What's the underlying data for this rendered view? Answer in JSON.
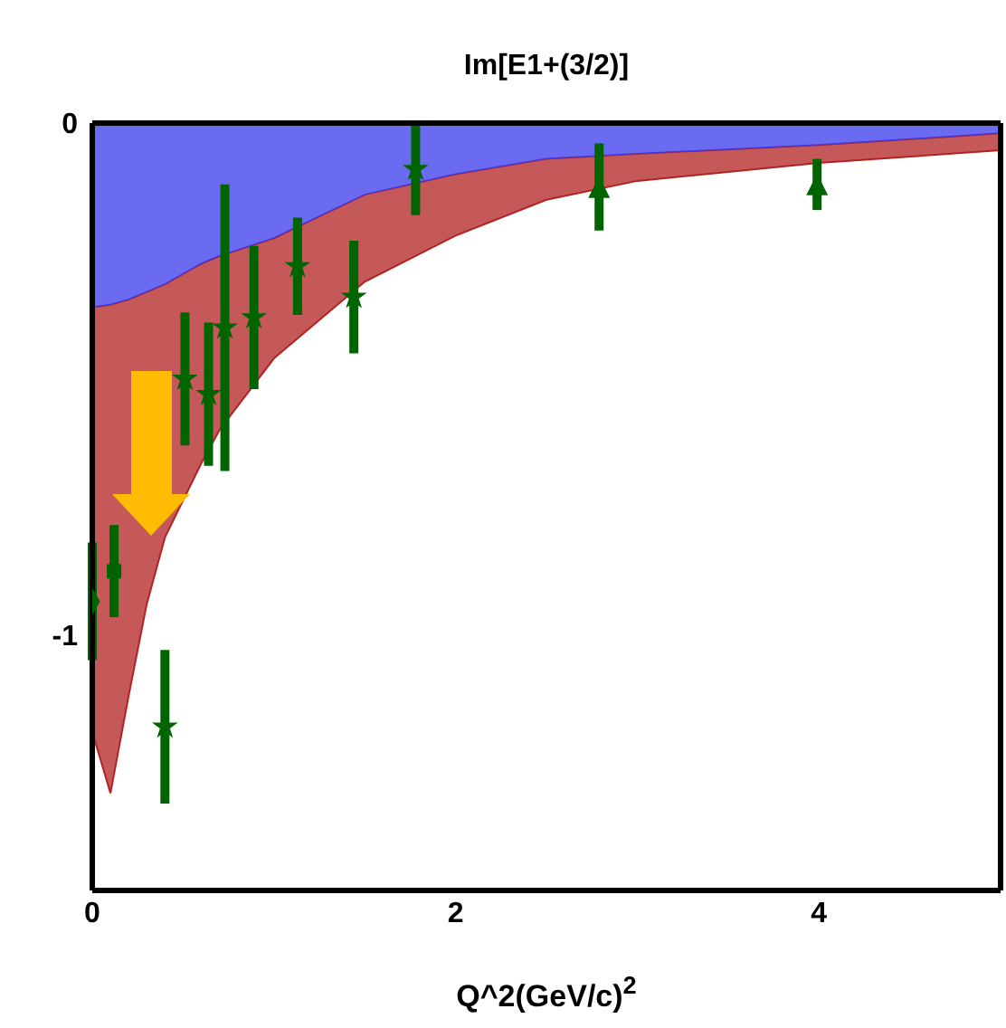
{
  "chart_data": {
    "type": "scatter",
    "title": "Im[E1+(3/2)]",
    "xlabel": "Q^2(GeV/c)$^{2}$",
    "xlim": [
      0,
      5
    ],
    "xticks": [
      0,
      2,
      4
    ],
    "ylim": [
      -1.5,
      0
    ],
    "yticks": [
      0,
      -1
    ],
    "grid": false,
    "legend": false,
    "stacked": true,
    "series": [
      {
        "type": "area",
        "color": "#3a3aee",
        "x": [
          0,
          0.1,
          0.2,
          0.3,
          0.4,
          0.6,
          0.7,
          1.0,
          1.5,
          2.0,
          2.5,
          3.0,
          4.0,
          5.0
        ],
        "values": [
          -0.36,
          -0.355,
          -0.345,
          -0.33,
          -0.315,
          -0.275,
          -0.26,
          -0.225,
          -0.14,
          -0.1,
          -0.07,
          -0.06,
          -0.043,
          -0.02
        ]
      },
      {
        "type": "area",
        "color": "#b22222",
        "x": [
          0,
          0.1,
          0.2,
          0.3,
          0.4,
          0.6,
          0.7,
          1.0,
          1.5,
          2.0,
          2.5,
          3.0,
          4.0,
          5.0
        ],
        "values": [
          -0.83,
          -0.955,
          -0.775,
          -0.61,
          -0.495,
          -0.39,
          -0.34,
          -0.235,
          -0.17,
          -0.12,
          -0.08,
          -0.053,
          -0.035,
          -0.033
        ]
      },
      {
        "marker": "diamond",
        "color": "#006400",
        "x": [
          0.0
        ],
        "values": [
          -0.935
        ],
        "errors": [
          0.115
        ]
      },
      {
        "marker": "square",
        "color": "#006400",
        "x": [
          0.12
        ],
        "values": [
          -0.876
        ],
        "errors": [
          0.09
        ]
      },
      {
        "marker": "star",
        "color": "#006400",
        "x": [
          0.4,
          0.51,
          0.64,
          0.73,
          0.89,
          1.13,
          1.44,
          1.78
        ],
        "values": [
          -1.18,
          -0.5,
          -0.53,
          -0.4,
          -0.38,
          -0.28,
          -0.34,
          -0.09
        ],
        "errors": [
          0.15,
          0.13,
          0.14,
          0.28,
          0.14,
          0.095,
          0.11,
          0.09
        ]
      },
      {
        "marker": "triangle",
        "color": "#006400",
        "x": [
          2.79,
          3.99
        ],
        "values": [
          -0.125,
          -0.12
        ],
        "errors": [
          0.085,
          0.05
        ]
      }
    ]
  }
}
